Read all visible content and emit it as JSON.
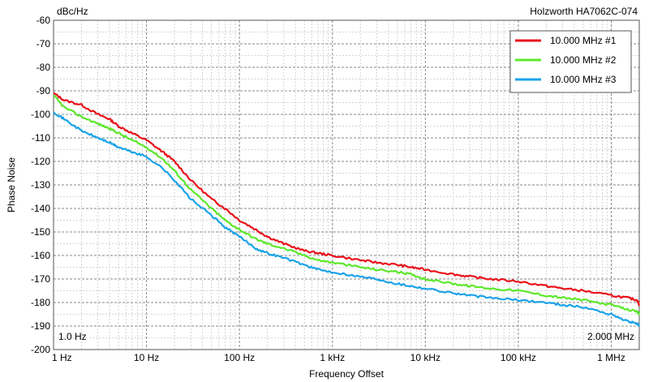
{
  "header": {
    "unit_label": "dBc/Hz",
    "instrument": "Holzworth HA7062C-074"
  },
  "chart_data": {
    "type": "line",
    "xscale": "log",
    "xlim": [
      1,
      2000000
    ],
    "ylim": [
      -200,
      -60
    ],
    "xlabel": "Frequency Offset",
    "ylabel": "Phase Noise",
    "grid": true,
    "legend_position": "top-right",
    "start_label": "1.0 Hz",
    "stop_label": "2.000 MHz",
    "x_ticks": [
      {
        "value": 1,
        "label": "1 Hz"
      },
      {
        "value": 10,
        "label": "10 Hz"
      },
      {
        "value": 100,
        "label": "100 Hz"
      },
      {
        "value": 1000,
        "label": "1 kHz"
      },
      {
        "value": 10000,
        "label": "10 kHz"
      },
      {
        "value": 100000,
        "label": "100 kHz"
      },
      {
        "value": 1000000,
        "label": "1 MHz"
      }
    ],
    "y_ticks": [
      -60,
      -70,
      -80,
      -90,
      -100,
      -110,
      -120,
      -130,
      -140,
      -150,
      -160,
      -170,
      -180,
      -190,
      -200
    ],
    "series": [
      {
        "name": "10.000 MHz #1",
        "color": "#e8121b",
        "points": [
          [
            1,
            -91
          ],
          [
            1.3,
            -94
          ],
          [
            2,
            -96
          ],
          [
            3,
            -100
          ],
          [
            4,
            -102
          ],
          [
            5,
            -105
          ],
          [
            7,
            -108
          ],
          [
            10,
            -111
          ],
          [
            15,
            -116
          ],
          [
            20,
            -120
          ],
          [
            30,
            -128
          ],
          [
            50,
            -136
          ],
          [
            70,
            -140
          ],
          [
            100,
            -145
          ],
          [
            150,
            -149
          ],
          [
            200,
            -152
          ],
          [
            300,
            -155
          ],
          [
            500,
            -158
          ],
          [
            700,
            -159
          ],
          [
            1000,
            -160
          ],
          [
            2000,
            -162
          ],
          [
            3000,
            -163
          ],
          [
            5000,
            -164
          ],
          [
            7000,
            -165
          ],
          [
            10000,
            -166
          ],
          [
            20000,
            -168
          ],
          [
            30000,
            -169
          ],
          [
            50000,
            -170
          ],
          [
            100000,
            -171
          ],
          [
            200000,
            -173
          ],
          [
            300000,
            -174
          ],
          [
            500000,
            -175
          ],
          [
            1000000,
            -177
          ],
          [
            1500000,
            -178
          ],
          [
            1900000,
            -179
          ],
          [
            2000000,
            -181
          ]
        ]
      },
      {
        "name": "10.000 MHz #2",
        "color": "#5de82b",
        "points": [
          [
            1,
            -92
          ],
          [
            1.3,
            -97
          ],
          [
            2,
            -101
          ],
          [
            3,
            -104
          ],
          [
            4,
            -106
          ],
          [
            5,
            -108
          ],
          [
            7,
            -111
          ],
          [
            10,
            -114
          ],
          [
            15,
            -119
          ],
          [
            20,
            -124
          ],
          [
            30,
            -132
          ],
          [
            50,
            -140
          ],
          [
            70,
            -145
          ],
          [
            100,
            -149
          ],
          [
            150,
            -153
          ],
          [
            200,
            -155
          ],
          [
            300,
            -157
          ],
          [
            500,
            -160
          ],
          [
            700,
            -162
          ],
          [
            1000,
            -163
          ],
          [
            2000,
            -165
          ],
          [
            3000,
            -166
          ],
          [
            5000,
            -167
          ],
          [
            7000,
            -168
          ],
          [
            10000,
            -170
          ],
          [
            20000,
            -172
          ],
          [
            30000,
            -173
          ],
          [
            50000,
            -174
          ],
          [
            100000,
            -175
          ],
          [
            200000,
            -177
          ],
          [
            300000,
            -178
          ],
          [
            500000,
            -179
          ],
          [
            1000000,
            -181
          ],
          [
            1500000,
            -183
          ],
          [
            1900000,
            -184
          ],
          [
            2000000,
            -185
          ]
        ]
      },
      {
        "name": "10.000 MHz #3",
        "color": "#1aa3e8",
        "points": [
          [
            1,
            -99
          ],
          [
            1.3,
            -102
          ],
          [
            2,
            -107
          ],
          [
            3,
            -110
          ],
          [
            4,
            -112
          ],
          [
            5,
            -114
          ],
          [
            7,
            -116
          ],
          [
            10,
            -118
          ],
          [
            15,
            -123
          ],
          [
            20,
            -128
          ],
          [
            30,
            -136
          ],
          [
            50,
            -143
          ],
          [
            70,
            -148
          ],
          [
            100,
            -152
          ],
          [
            150,
            -157
          ],
          [
            200,
            -159
          ],
          [
            300,
            -161
          ],
          [
            500,
            -164
          ],
          [
            700,
            -166
          ],
          [
            1000,
            -167
          ],
          [
            2000,
            -169
          ],
          [
            3000,
            -170
          ],
          [
            5000,
            -172
          ],
          [
            7000,
            -173
          ],
          [
            10000,
            -174
          ],
          [
            20000,
            -176
          ],
          [
            30000,
            -177
          ],
          [
            50000,
            -178
          ],
          [
            100000,
            -179
          ],
          [
            200000,
            -180
          ],
          [
            300000,
            -181
          ],
          [
            500000,
            -182
          ],
          [
            1000000,
            -185
          ],
          [
            1500000,
            -188
          ],
          [
            1900000,
            -189
          ],
          [
            2000000,
            -190
          ]
        ]
      }
    ]
  }
}
